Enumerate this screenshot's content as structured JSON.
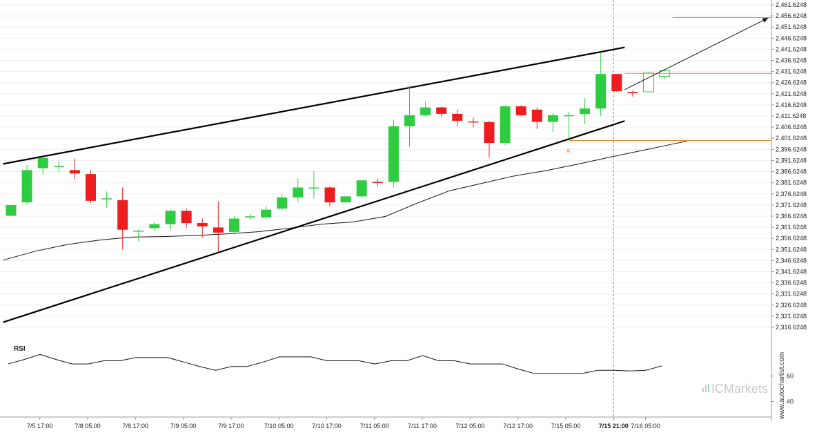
{
  "chart_data": {
    "type": "candlestick",
    "panels": [
      "price",
      "rsi"
    ],
    "y_axis": {
      "min": 2316.6248,
      "max": 2461.6248,
      "ticks": [
        "2,461.6248",
        "2,456.6248",
        "2,451.6248",
        "2,446.6248",
        "2,441.6248",
        "2,436.6248",
        "2,431.6248",
        "2,426.6248",
        "2,421.6248",
        "2,416.6248",
        "2,411.6248",
        "2,406.6248",
        "2,401.6248",
        "2,396.6248",
        "2,391.6248",
        "2,386.6248",
        "2,381.6248",
        "2,376.6248",
        "2,371.6248",
        "2,366.6248",
        "2,361.6248",
        "2,356.6248",
        "2,351.6248",
        "2,346.6248",
        "2,341.6248",
        "2,336.6248",
        "2,331.6248",
        "2,326.6248",
        "2,321.6248",
        "2,316.6248"
      ]
    },
    "x_ticks": [
      "7/5 17:00",
      "7/8 05:00",
      "7/8 17:00",
      "7/9 05:00",
      "7/9 17:00",
      "7/10 05:00",
      "7/10 17:00",
      "7/11 05:00",
      "7/11 17:00",
      "7/12 05:00",
      "7/12 17:00",
      "7/15 05:00",
      "7/15 21:00",
      "7/16 05:00"
    ],
    "x_tick_index": [
      2,
      5,
      8,
      11,
      14,
      17,
      20,
      23,
      26,
      29,
      32,
      35,
      38,
      40
    ],
    "highlight_tick": "7/15 21:00",
    "candles": [
      {
        "o": 2366.8,
        "h": 2371.6,
        "l": 2366.6,
        "c": 2371.6
      },
      {
        "o": 2372.8,
        "h": 2389.5,
        "l": 2372.0,
        "c": 2387.3
      },
      {
        "o": 2388.2,
        "h": 2392.8,
        "l": 2385.3,
        "c": 2392.8
      },
      {
        "o": 2389.0,
        "h": 2391.5,
        "l": 2386.2,
        "c": 2389.2
      },
      {
        "o": 2387.3,
        "h": 2392.5,
        "l": 2383.0,
        "c": 2385.8
      },
      {
        "o": 2385.5,
        "h": 2387.2,
        "l": 2372.5,
        "c": 2373.5
      },
      {
        "o": 2374.5,
        "h": 2377.7,
        "l": 2370.5,
        "c": 2374.6
      },
      {
        "o": 2373.8,
        "h": 2379.5,
        "l": 2351.6,
        "c": 2360.5
      },
      {
        "o": 2359.7,
        "h": 2360.5,
        "l": 2355.3,
        "c": 2360.1
      },
      {
        "o": 2361.2,
        "h": 2364.0,
        "l": 2360.0,
        "c": 2363.0
      },
      {
        "o": 2363.0,
        "h": 2369.5,
        "l": 2360.5,
        "c": 2369.0
      },
      {
        "o": 2369.0,
        "h": 2370.0,
        "l": 2361.5,
        "c": 2363.5
      },
      {
        "o": 2363.5,
        "h": 2365.5,
        "l": 2357.0,
        "c": 2362.0
      },
      {
        "o": 2361.5,
        "h": 2373.3,
        "l": 2350.5,
        "c": 2359.2
      },
      {
        "o": 2359.5,
        "h": 2366.5,
        "l": 2358.9,
        "c": 2365.5
      },
      {
        "o": 2366.0,
        "h": 2367.5,
        "l": 2365.0,
        "c": 2366.5
      },
      {
        "o": 2366.0,
        "h": 2371.0,
        "l": 2366.0,
        "c": 2369.5
      },
      {
        "o": 2370.0,
        "h": 2376.5,
        "l": 2369.3,
        "c": 2375.0
      },
      {
        "o": 2375.0,
        "h": 2383.5,
        "l": 2373.0,
        "c": 2379.5
      },
      {
        "o": 2379.2,
        "h": 2386.8,
        "l": 2374.5,
        "c": 2379.5
      },
      {
        "o": 2379.5,
        "h": 2380.0,
        "l": 2371.0,
        "c": 2372.8
      },
      {
        "o": 2372.8,
        "h": 2375.5,
        "l": 2372.7,
        "c": 2375.5
      },
      {
        "o": 2375.5,
        "h": 2382.7,
        "l": 2375.0,
        "c": 2382.7
      },
      {
        "o": 2382.0,
        "h": 2383.5,
        "l": 2380.0,
        "c": 2381.5
      },
      {
        "o": 2382.0,
        "h": 2410.0,
        "l": 2379.5,
        "c": 2407.0
      },
      {
        "o": 2407.0,
        "h": 2425.3,
        "l": 2397.8,
        "c": 2412.0
      },
      {
        "o": 2412.0,
        "h": 2418.0,
        "l": 2411.5,
        "c": 2415.5
      },
      {
        "o": 2415.5,
        "h": 2416.0,
        "l": 2411.5,
        "c": 2412.6
      },
      {
        "o": 2412.6,
        "h": 2414.5,
        "l": 2407.0,
        "c": 2409.5
      },
      {
        "o": 2409.2,
        "h": 2411.0,
        "l": 2406.5,
        "c": 2408.9
      },
      {
        "o": 2408.9,
        "h": 2409.5,
        "l": 2392.9,
        "c": 2399.5
      },
      {
        "o": 2399.5,
        "h": 2416.5,
        "l": 2398.5,
        "c": 2416.0
      },
      {
        "o": 2416.0,
        "h": 2416.5,
        "l": 2411.5,
        "c": 2412.0
      },
      {
        "o": 2414.5,
        "h": 2415.5,
        "l": 2405.8,
        "c": 2409.0
      },
      {
        "o": 2409.0,
        "h": 2413.0,
        "l": 2404.5,
        "c": 2412.0
      },
      {
        "o": 2412.0,
        "h": 2413.5,
        "l": 2401.5,
        "c": 2412.0
      },
      {
        "o": 2412.5,
        "h": 2419.8,
        "l": 2408.0,
        "c": 2415.0
      },
      {
        "o": 2415.0,
        "h": 2440.0,
        "l": 2411.5,
        "c": 2430.5
      },
      {
        "o": 2430.5,
        "h": 2430.5,
        "l": 2422.5,
        "c": 2422.8
      },
      {
        "o": 2422.5,
        "h": 2423.0,
        "l": 2420.4,
        "c": 2422.0
      },
      {
        "o": 2422.5,
        "h": 2431.3,
        "l": 2422.5,
        "c": 2431.0
      },
      {
        "o": 2429.5,
        "h": 2432.5,
        "l": 2428.0,
        "c": 2432.0
      }
    ],
    "outlined_candles": [
      40,
      41
    ],
    "moving_average": [
      {
        "x": -0.5,
        "y": 2346.8
      },
      {
        "x": 1.5,
        "y": 2350.8
      },
      {
        "x": 3.5,
        "y": 2353.8
      },
      {
        "x": 5.5,
        "y": 2355.8
      },
      {
        "x": 7.5,
        "y": 2357.2
      },
      {
        "x": 9.5,
        "y": 2357.4
      },
      {
        "x": 11.5,
        "y": 2357.9
      },
      {
        "x": 13.5,
        "y": 2358.6
      },
      {
        "x": 15.5,
        "y": 2359.6
      },
      {
        "x": 17.5,
        "y": 2361.2
      },
      {
        "x": 19.5,
        "y": 2363.0
      },
      {
        "x": 21.5,
        "y": 2364.0
      },
      {
        "x": 23.5,
        "y": 2366.5
      },
      {
        "x": 25.5,
        "y": 2372.5
      },
      {
        "x": 27.5,
        "y": 2378.0
      },
      {
        "x": 29.5,
        "y": 2381.3
      },
      {
        "x": 31.5,
        "y": 2384.6
      },
      {
        "x": 33.5,
        "y": 2387.0
      },
      {
        "x": 35.5,
        "y": 2389.9
      },
      {
        "x": 37.5,
        "y": 2393.0
      },
      {
        "x": 39.5,
        "y": 2396.0
      },
      {
        "x": 41.5,
        "y": 2399.0
      },
      {
        "x": 42.4,
        "y": 2400.3
      }
    ],
    "trend_lines": [
      {
        "from": {
          "x": -0.5,
          "y": 2390.1
        },
        "to": {
          "x": 38.5,
          "y": 2442.5
        }
      },
      {
        "from": {
          "x": -0.5,
          "y": 2318.9
        },
        "to": {
          "x": 38.5,
          "y": 2409.4
        }
      }
    ],
    "arrow": {
      "from": {
        "x": 38.5,
        "y": 2423.5
      },
      "to": {
        "x": 47.5,
        "y": 2455.7
      }
    },
    "horizontal_levels": [
      {
        "y": 2455.9,
        "x_from": 41.5
      },
      {
        "y": 2430.8,
        "x_from": 38.5
      },
      {
        "y": 2400.6,
        "x_from": 35.0
      }
    ],
    "annotation_A": {
      "label": "A",
      "x": 35.0,
      "y": 2398.2
    },
    "rsi": {
      "label": "RSI",
      "ticks": [
        "60",
        "40"
      ],
      "range": [
        30,
        95
      ],
      "values": [
        69.5,
        73,
        77,
        73,
        69.5,
        69.5,
        72,
        72,
        74.5,
        74.5,
        74.5,
        71,
        67.5,
        64.5,
        67.5,
        67.5,
        71,
        75,
        75,
        75,
        72,
        72,
        72,
        69.5,
        72,
        72,
        76,
        72,
        72,
        69.5,
        69.5,
        69.5,
        65.5,
        62,
        62,
        62,
        62,
        64.5,
        64.5,
        64,
        64.5,
        68
      ]
    }
  },
  "brand": {
    "logo_text": "ICMarkets"
  },
  "watermark": {
    "text": "www.autochartist.com"
  },
  "colors": {
    "up": "#2ecc40",
    "down": "#ee1c1c",
    "level": "#e68a2e",
    "axis": "#999999"
  }
}
